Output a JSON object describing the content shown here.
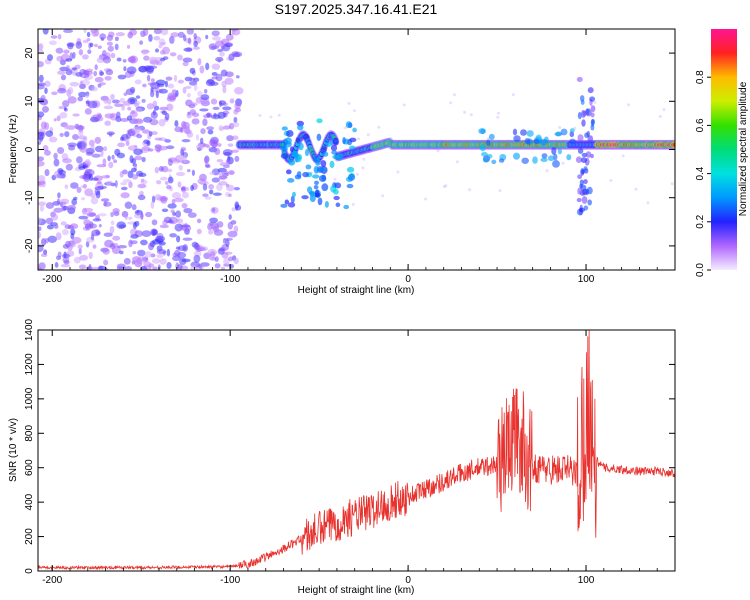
{
  "title": "S197.2025.347.16.41.E21",
  "chart_data": [
    {
      "type": "heatmap",
      "xlabel": "Height of straight line (km)",
      "ylabel": "Frequency (Hz)",
      "xlim": [
        -208,
        150
      ],
      "ylim": [
        -25,
        25
      ],
      "xticks": [
        -200,
        -100,
        0,
        100
      ],
      "yticks": [
        -20,
        -10,
        0,
        10,
        20
      ],
      "colorbar": {
        "label": "Normalized spectral amplitude",
        "range": [
          0,
          1
        ],
        "ticks": [
          0.0,
          0.2,
          0.4,
          0.6,
          0.8
        ]
      },
      "features": [
        {
          "name": "noise_region",
          "x_range": [
            -208,
            -95
          ],
          "freq_range": [
            -25,
            25
          ],
          "amplitude": 0.15
        },
        {
          "name": "signal_band",
          "x_range": [
            -95,
            150
          ],
          "center_freq_hz": 1,
          "peak_amplitude": 1.0
        },
        {
          "name": "disturbance",
          "x": -55,
          "freq_range": [
            -12,
            6
          ]
        },
        {
          "name": "disturbance",
          "x": 100,
          "freq_range": [
            -13,
            15
          ]
        }
      ]
    },
    {
      "type": "line",
      "xlabel": "Height of straight line (km)",
      "ylabel": "SNR (10 * v/v)",
      "xlim": [
        -208,
        150
      ],
      "ylim": [
        0,
        1400
      ],
      "xticks": [
        -200,
        -100,
        0,
        100
      ],
      "yticks": [
        0,
        200,
        400,
        600,
        800,
        1000,
        1200,
        1400
      ],
      "series": [
        {
          "name": "SNR",
          "color": "#e8322e",
          "x": [
            -208,
            -150,
            -100,
            -90,
            -80,
            -70,
            -60,
            -50,
            -40,
            -30,
            -20,
            -10,
            0,
            10,
            20,
            30,
            40,
            50,
            55,
            60,
            65,
            70,
            80,
            90,
            95,
            100,
            102,
            105,
            110,
            120,
            130,
            140,
            150
          ],
          "y": [
            20,
            20,
            25,
            40,
            80,
            130,
            190,
            240,
            280,
            320,
            350,
            400,
            430,
            480,
            520,
            570,
            600,
            620,
            700,
            800,
            720,
            600,
            590,
            590,
            570,
            900,
            1000,
            650,
            600,
            590,
            580,
            580,
            570
          ]
        }
      ]
    }
  ]
}
